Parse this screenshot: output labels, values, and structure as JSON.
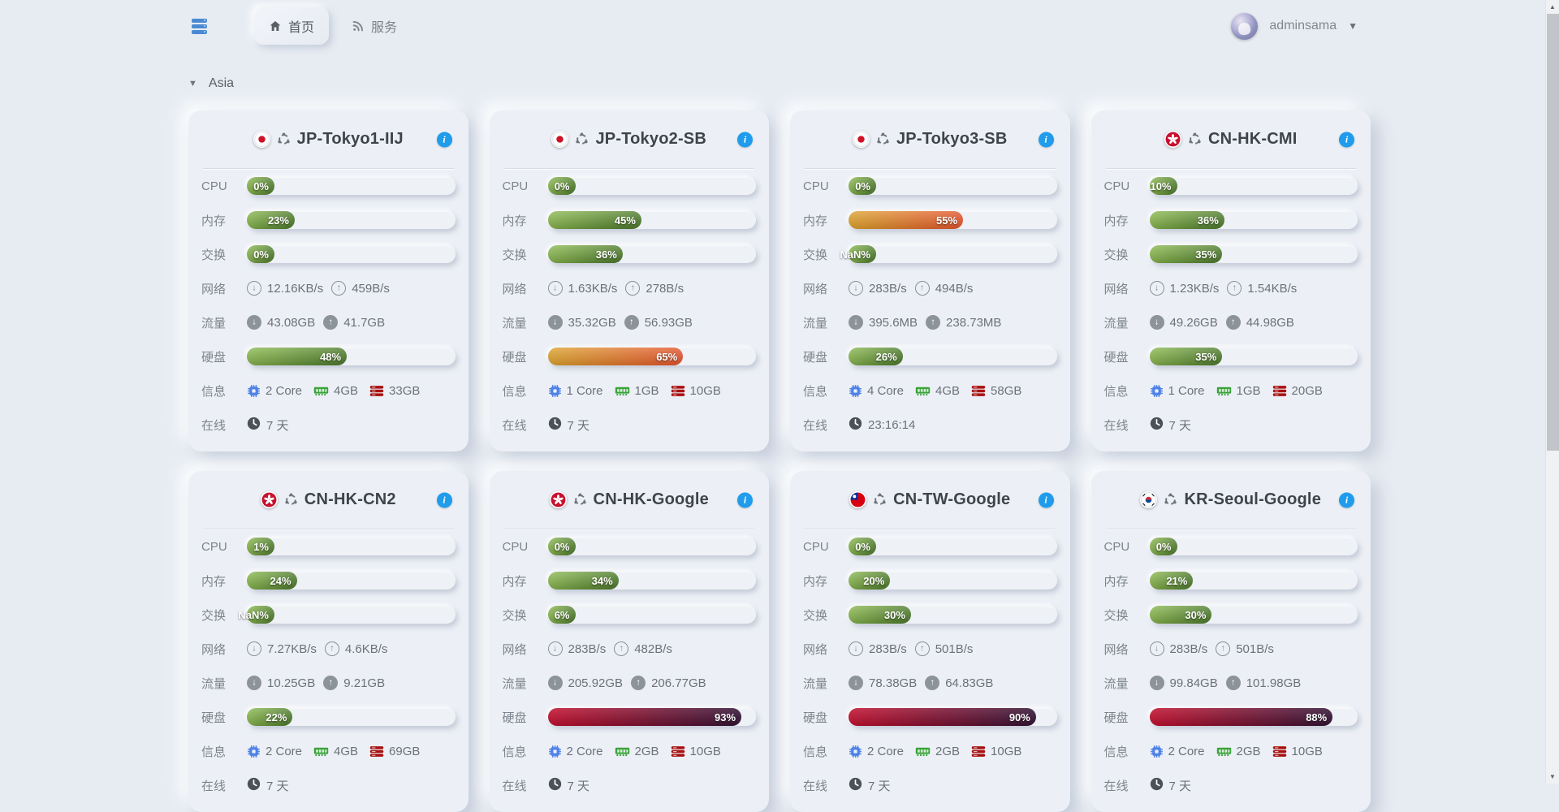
{
  "navbar": {
    "logo_icon": "server-stack-icon",
    "tabs": [
      {
        "label": "首页",
        "icon": "home-icon",
        "active": true
      },
      {
        "label": "服务",
        "icon": "rss-icon",
        "active": false
      }
    ],
    "user": {
      "name": "adminsama"
    }
  },
  "section": {
    "title": "Asia"
  },
  "labels": {
    "cpu": "CPU",
    "memory": "内存",
    "swap": "交换",
    "network": "网络",
    "traffic": "流量",
    "disk": "硬盘",
    "info": "信息",
    "online": "在线"
  },
  "colors": {
    "accent_blue": "#1f9ceb",
    "bar_green": [
      "#8cbb4f",
      "#4d7c2b"
    ],
    "bar_orange": [
      "#dda22b",
      "#e4522c"
    ],
    "bar_red": [
      "#c30f2e",
      "#321335"
    ]
  },
  "servers": [
    {
      "name": "JP-Tokyo1-IIJ",
      "flag": "jp",
      "os": "ubuntu",
      "cpu": {
        "value": 0,
        "label": "0%"
      },
      "memory": {
        "value": 23,
        "label": "23%"
      },
      "swap": {
        "value": 0,
        "label": "0%"
      },
      "network": {
        "down": "12.16KB/s",
        "up": "459B/s"
      },
      "traffic": {
        "down": "43.08GB",
        "up": "41.7GB"
      },
      "disk": {
        "value": 48,
        "label": "48%"
      },
      "info": {
        "cores": "2 Core",
        "ram": "4GB",
        "disk": "33GB"
      },
      "online": "7 天"
    },
    {
      "name": "JP-Tokyo2-SB",
      "flag": "jp",
      "os": "ubuntu",
      "cpu": {
        "value": 0,
        "label": "0%"
      },
      "memory": {
        "value": 45,
        "label": "45%"
      },
      "swap": {
        "value": 36,
        "label": "36%"
      },
      "network": {
        "down": "1.63KB/s",
        "up": "278B/s"
      },
      "traffic": {
        "down": "35.32GB",
        "up": "56.93GB"
      },
      "disk": {
        "value": 65,
        "label": "65%"
      },
      "info": {
        "cores": "1 Core",
        "ram": "1GB",
        "disk": "10GB"
      },
      "online": "7 天"
    },
    {
      "name": "JP-Tokyo3-SB",
      "flag": "jp",
      "os": "ubuntu",
      "cpu": {
        "value": 0,
        "label": "0%"
      },
      "memory": {
        "value": 55,
        "label": "55%"
      },
      "swap": {
        "value": null,
        "label": "NaN%"
      },
      "network": {
        "down": "283B/s",
        "up": "494B/s"
      },
      "traffic": {
        "down": "395.6MB",
        "up": "238.73MB"
      },
      "disk": {
        "value": 26,
        "label": "26%"
      },
      "info": {
        "cores": "4 Core",
        "ram": "4GB",
        "disk": "58GB"
      },
      "online": "23:16:14"
    },
    {
      "name": "CN-HK-CMI",
      "flag": "hk",
      "os": "ubuntu",
      "cpu": {
        "value": 10,
        "label": "10%"
      },
      "memory": {
        "value": 36,
        "label": "36%"
      },
      "swap": {
        "value": 35,
        "label": "35%"
      },
      "network": {
        "down": "1.23KB/s",
        "up": "1.54KB/s"
      },
      "traffic": {
        "down": "49.26GB",
        "up": "44.98GB"
      },
      "disk": {
        "value": 35,
        "label": "35%"
      },
      "info": {
        "cores": "1 Core",
        "ram": "1GB",
        "disk": "20GB"
      },
      "online": "7 天"
    },
    {
      "name": "CN-HK-CN2",
      "flag": "hk",
      "os": "ubuntu",
      "cpu": {
        "value": 1,
        "label": "1%"
      },
      "memory": {
        "value": 24,
        "label": "24%"
      },
      "swap": {
        "value": null,
        "label": "NaN%"
      },
      "network": {
        "down": "7.27KB/s",
        "up": "4.6KB/s"
      },
      "traffic": {
        "down": "10.25GB",
        "up": "9.21GB"
      },
      "disk": {
        "value": 22,
        "label": "22%"
      },
      "info": {
        "cores": "2 Core",
        "ram": "4GB",
        "disk": "69GB"
      },
      "online": "7 天"
    },
    {
      "name": "CN-HK-Google",
      "flag": "hk",
      "os": "ubuntu",
      "cpu": {
        "value": 0,
        "label": "0%"
      },
      "memory": {
        "value": 34,
        "label": "34%"
      },
      "swap": {
        "value": 6,
        "label": "6%"
      },
      "network": {
        "down": "283B/s",
        "up": "482B/s"
      },
      "traffic": {
        "down": "205.92GB",
        "up": "206.77GB"
      },
      "disk": {
        "value": 93,
        "label": "93%"
      },
      "info": {
        "cores": "2 Core",
        "ram": "2GB",
        "disk": "10GB"
      },
      "online": "7 天"
    },
    {
      "name": "CN-TW-Google",
      "flag": "tw",
      "os": "ubuntu",
      "cpu": {
        "value": 0,
        "label": "0%"
      },
      "memory": {
        "value": 20,
        "label": "20%"
      },
      "swap": {
        "value": 30,
        "label": "30%"
      },
      "network": {
        "down": "283B/s",
        "up": "501B/s"
      },
      "traffic": {
        "down": "78.38GB",
        "up": "64.83GB"
      },
      "disk": {
        "value": 90,
        "label": "90%"
      },
      "info": {
        "cores": "2 Core",
        "ram": "2GB",
        "disk": "10GB"
      },
      "online": "7 天"
    },
    {
      "name": "KR-Seoul-Google",
      "flag": "kr",
      "os": "ubuntu",
      "cpu": {
        "value": 0,
        "label": "0%"
      },
      "memory": {
        "value": 21,
        "label": "21%"
      },
      "swap": {
        "value": 30,
        "label": "30%"
      },
      "network": {
        "down": "283B/s",
        "up": "501B/s"
      },
      "traffic": {
        "down": "99.84GB",
        "up": "101.98GB"
      },
      "disk": {
        "value": 88,
        "label": "88%"
      },
      "info": {
        "cores": "2 Core",
        "ram": "2GB",
        "disk": "10GB"
      },
      "online": "7 天"
    }
  ]
}
